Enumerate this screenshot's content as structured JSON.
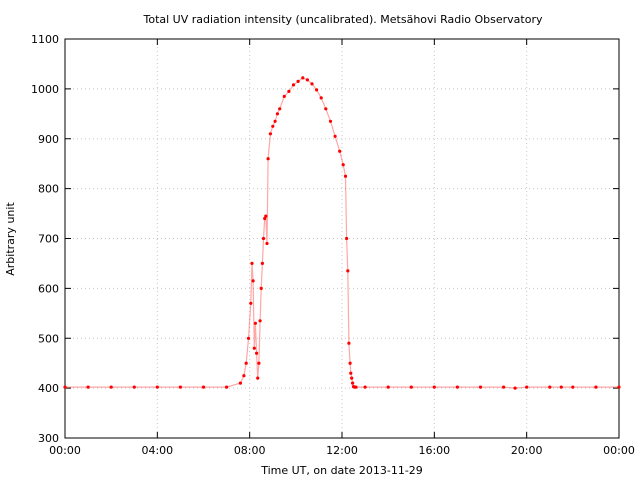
{
  "chart_data": {
    "type": "scatter",
    "title": "Total UV radiation intensity (uncalibrated). Metsähovi Radio Observatory",
    "xlabel": "Time UT, on date 2013-11-29",
    "ylabel": "Arbitrary unit",
    "xlim": [
      0,
      24
    ],
    "ylim": [
      300,
      1100
    ],
    "x_unit": "hours UT",
    "x_ticks": [
      0,
      4,
      8,
      12,
      16,
      20,
      24
    ],
    "x_tick_labels": [
      "00:00",
      "04:00",
      "08:00",
      "12:00",
      "16:00",
      "20:00",
      "00:00"
    ],
    "y_ticks": [
      300,
      400,
      500,
      600,
      700,
      800,
      900,
      1000,
      1100
    ],
    "y_tick_labels": [
      "300",
      "400",
      "500",
      "600",
      "700",
      "800",
      "900",
      "1000",
      "1100"
    ],
    "grid": true,
    "legend": "none",
    "point_color": "#ff0000",
    "series": [
      {
        "x": [
          0,
          1,
          2,
          3,
          4,
          5,
          6,
          7,
          7.6,
          7.75,
          7.85,
          7.95,
          8.05,
          8.1,
          8.15,
          8.2,
          8.25,
          8.3,
          8.35,
          8.4,
          8.45,
          8.5,
          8.55,
          8.6,
          8.65,
          8.7,
          8.75,
          8.8,
          8.9,
          9.0,
          9.1,
          9.2,
          9.3,
          9.5,
          9.7,
          9.9,
          10.1,
          10.3,
          10.5,
          10.7,
          10.9,
          11.1,
          11.3,
          11.5,
          11.7,
          11.9,
          12.05,
          12.15,
          12.2,
          12.25,
          12.3,
          12.35,
          12.38,
          12.42,
          12.46,
          12.5,
          12.55,
          12.6,
          13,
          14,
          15,
          16,
          17,
          18,
          19,
          19.5,
          20,
          21,
          21.5,
          22,
          23,
          24
        ],
        "y": [
          402,
          402,
          402,
          402,
          402,
          402,
          402,
          402,
          410,
          425,
          450,
          500,
          570,
          650,
          615,
          480,
          530,
          470,
          420,
          450,
          535,
          600,
          650,
          700,
          740,
          745,
          690,
          860,
          910,
          925,
          935,
          950,
          960,
          985,
          995,
          1008,
          1015,
          1022,
          1018,
          1010,
          998,
          982,
          960,
          935,
          905,
          875,
          848,
          825,
          700,
          635,
          490,
          450,
          430,
          420,
          410,
          403,
          402,
          402,
          402,
          402,
          402,
          402,
          402,
          402,
          402,
          400,
          402,
          402,
          402,
          402,
          402,
          402
        ]
      }
    ]
  }
}
